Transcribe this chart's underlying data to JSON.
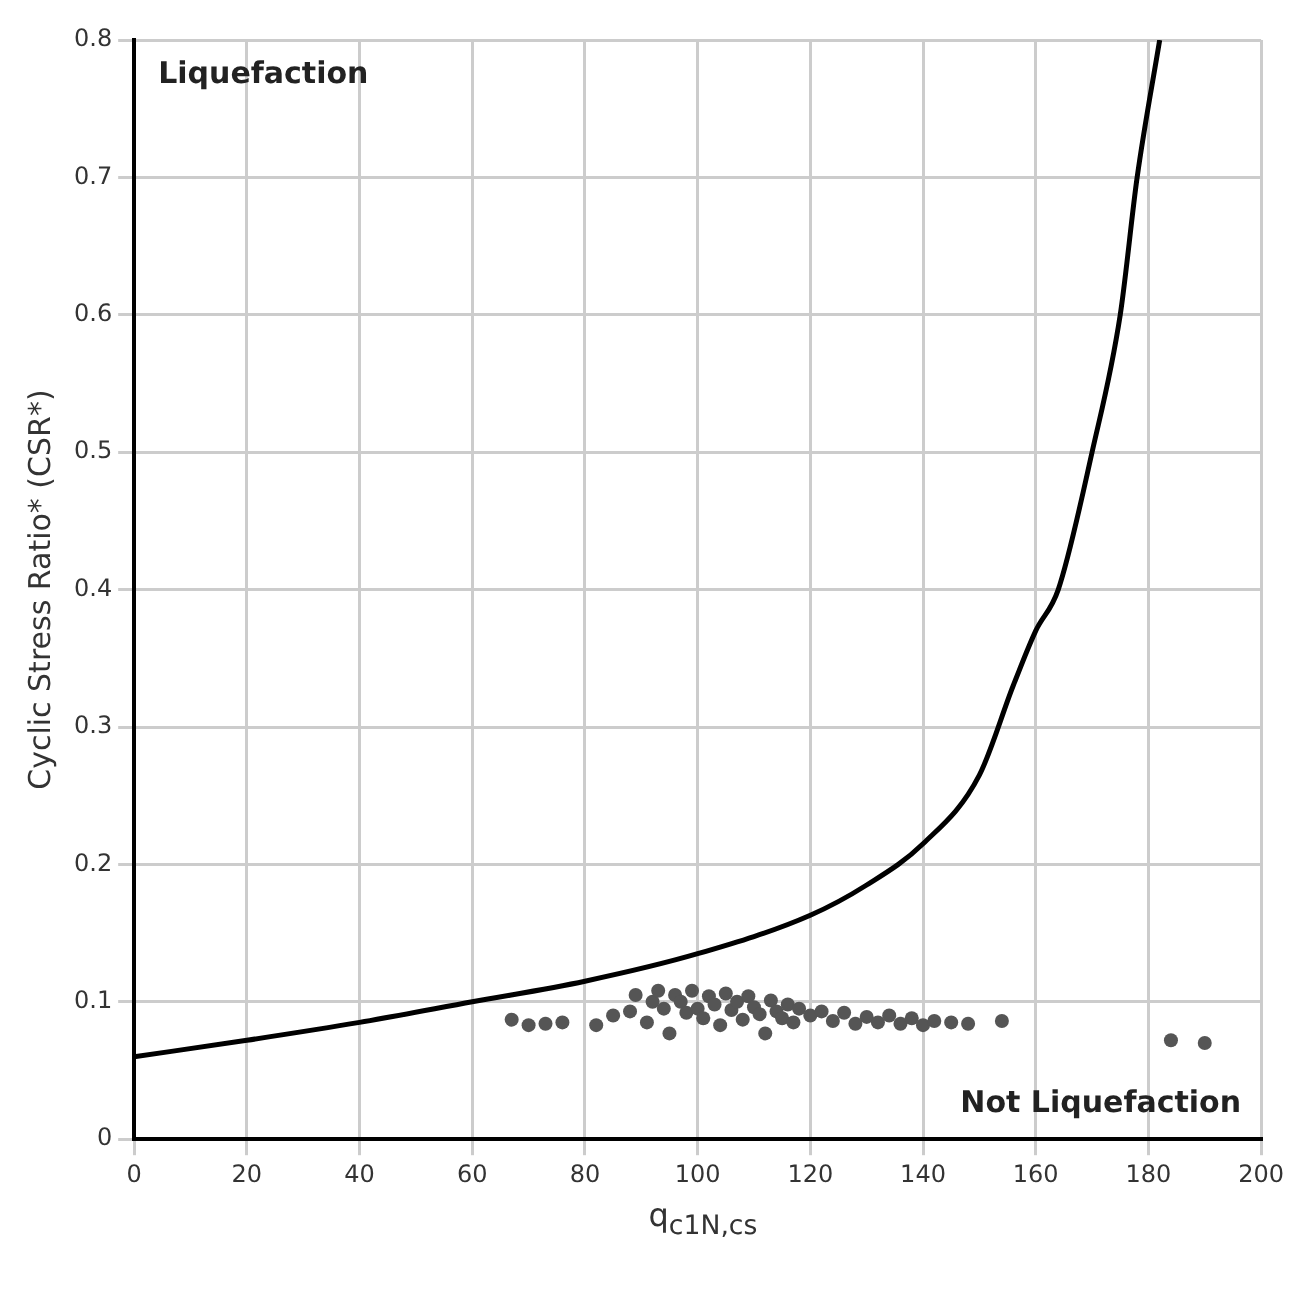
{
  "chart_data": {
    "type": "scatter",
    "xlabel": "q$_{c1N,cs}$",
    "ylabel": "Cyclic Stress Ratio* (CSR*)",
    "annotations": [
      "Liquefaction",
      "Not Liquefaction"
    ],
    "xlim": [
      0,
      200
    ],
    "xticks": [
      0,
      20,
      40,
      60,
      80,
      100,
      120,
      140,
      160,
      180,
      200
    ],
    "ylim": [
      0,
      0.8
    ],
    "yticks": [
      0,
      0.1,
      0.2,
      0.3,
      0.4,
      0.5,
      0.6,
      0.7,
      0.8
    ],
    "grid": true,
    "marker": "circle",
    "series": [
      {
        "type": "line",
        "color": "#000000",
        "line_style": "solid",
        "marker": "none",
        "x": [
          0,
          20,
          40,
          60,
          80,
          100,
          120,
          130,
          140,
          150,
          156,
          160,
          164,
          170,
          175,
          178,
          182
        ],
        "values": [
          0.06,
          0.072,
          0.085,
          0.1,
          0.115,
          0.135,
          0.163,
          0.185,
          0.215,
          0.265,
          0.33,
          0.37,
          0.4,
          0.5,
          0.6,
          0.7,
          0.8
        ]
      },
      {
        "color": "#555555",
        "x": [
          67,
          70,
          73,
          76,
          82,
          85,
          88,
          89,
          91,
          92,
          93,
          94,
          95,
          96,
          97,
          98,
          99,
          100,
          101,
          102,
          103,
          104,
          105,
          106,
          107,
          108,
          109,
          110,
          111,
          112,
          113,
          114,
          115,
          116,
          117,
          118,
          120,
          122,
          124,
          126,
          128,
          130,
          132,
          134,
          136,
          138,
          140,
          142,
          145,
          148,
          154,
          184,
          190
        ],
        "values": [
          0.087,
          0.083,
          0.084,
          0.085,
          0.083,
          0.09,
          0.093,
          0.105,
          0.085,
          0.1,
          0.108,
          0.095,
          0.077,
          0.105,
          0.1,
          0.092,
          0.108,
          0.095,
          0.088,
          0.104,
          0.098,
          0.083,
          0.106,
          0.094,
          0.1,
          0.087,
          0.104,
          0.096,
          0.091,
          0.077,
          0.101,
          0.093,
          0.088,
          0.098,
          0.085,
          0.095,
          0.09,
          0.093,
          0.086,
          0.092,
          0.084,
          0.089,
          0.085,
          0.09,
          0.084,
          0.088,
          0.083,
          0.086,
          0.085,
          0.084,
          0.086,
          0.072,
          0.07
        ]
      }
    ]
  }
}
